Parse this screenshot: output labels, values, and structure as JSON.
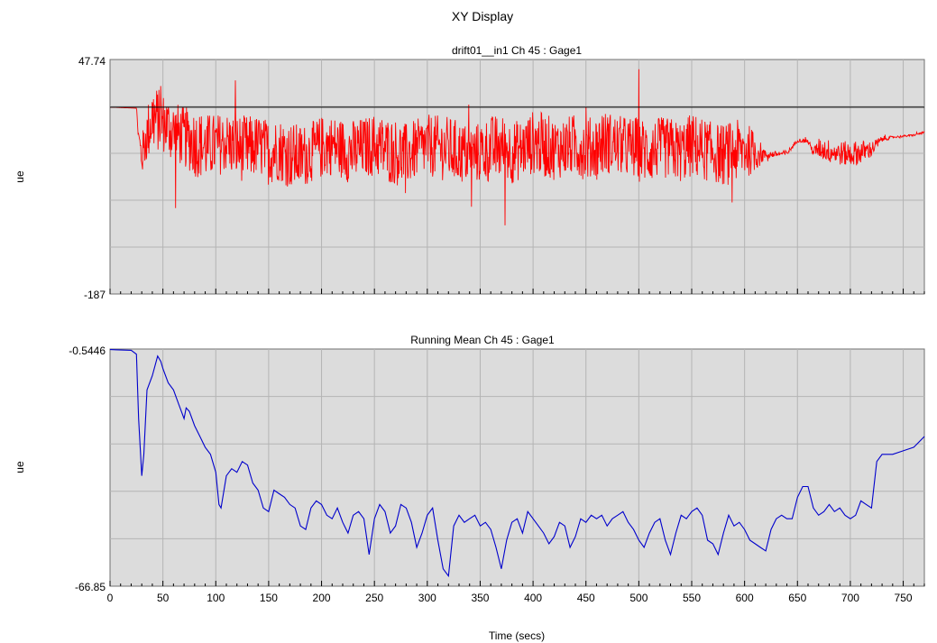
{
  "window_title": "XY Display",
  "xlabel": "Time (secs)",
  "colors": {
    "plot_bg": "#dcdcdc",
    "grid": "#b4b4b4",
    "series_top": "#ff0000",
    "series_bottom": "#0000cc",
    "hline": "#000000"
  },
  "chart_data": [
    {
      "type": "line",
      "title": "drift01__in1  Ch 45 : Gage1",
      "ylabel": "ue",
      "xlim": [
        0,
        770
      ],
      "ylim": [
        -187,
        47.74
      ],
      "y_tick_labels": [
        "47.74",
        "-187"
      ],
      "grid": true,
      "reference_line_y": 0,
      "series": [
        {
          "x": [
            0,
            25,
            27,
            30,
            33,
            40,
            50,
            60,
            70,
            80,
            90,
            100,
            110,
            120,
            130,
            140,
            150,
            160,
            170,
            180,
            190,
            200,
            210,
            220,
            230,
            240,
            250,
            260,
            270,
            280,
            290,
            300,
            310,
            320,
            330,
            340,
            350,
            360,
            370,
            380,
            390,
            400,
            410,
            420,
            430,
            440,
            450,
            460,
            470,
            480,
            490,
            500,
            510,
            520,
            530,
            540,
            550,
            560,
            570,
            580,
            590,
            600,
            610,
            620,
            630,
            640,
            645,
            650,
            660,
            665,
            670,
            680,
            690,
            700,
            710,
            720,
            730,
            740,
            750,
            760,
            770
          ],
          "y": [
            0,
            -1,
            -30,
            -50,
            -35,
            -10,
            -15,
            -25,
            -30,
            -35,
            -40,
            -38,
            -35,
            -40,
            -42,
            -38,
            -45,
            -42,
            -48,
            -50,
            -45,
            -40,
            -38,
            -42,
            -45,
            -40,
            -38,
            -42,
            -45,
            -48,
            -42,
            -38,
            -40,
            -42,
            -45,
            -48,
            -45,
            -42,
            -40,
            -45,
            -42,
            -35,
            -38,
            -42,
            -40,
            -38,
            -42,
            -40,
            -35,
            -38,
            -40,
            -42,
            -45,
            -40,
            -42,
            -45,
            -38,
            -42,
            -45,
            -48,
            -45,
            -42,
            -45,
            -48,
            -47,
            -46,
            -40,
            -33,
            -34,
            -45,
            -41,
            -44,
            -46,
            -47,
            -45,
            -42,
            -32,
            -30,
            -29,
            -28,
            -25
          ],
          "noise": [
            0,
            0,
            10,
            20,
            25,
            35,
            30,
            32,
            30,
            35,
            34,
            32,
            30,
            33,
            34,
            30,
            33,
            32,
            34,
            33,
            30,
            32,
            30,
            31,
            33,
            30,
            32,
            33,
            34,
            32,
            30,
            31,
            32,
            33,
            32,
            30,
            31,
            34,
            33,
            32,
            30,
            32,
            33,
            31,
            30,
            32,
            31,
            33,
            32,
            30,
            31,
            33,
            32,
            30,
            32,
            31,
            33,
            32,
            30,
            31,
            32,
            30,
            20,
            4,
            3,
            3,
            2,
            2,
            2,
            4,
            10,
            12,
            12,
            13,
            12,
            8,
            3,
            1,
            1,
            1,
            1
          ]
        }
      ]
    },
    {
      "type": "line",
      "title": "Running Mean  Ch 45 : Gage1",
      "ylabel": "ue",
      "xlim": [
        0,
        770
      ],
      "ylim": [
        -66.85,
        -0.5446
      ],
      "y_tick_labels": [
        "-0.5446",
        "-66.85"
      ],
      "x_tick_labels": [
        0,
        50,
        100,
        150,
        200,
        250,
        300,
        350,
        400,
        450,
        500,
        550,
        600,
        650,
        700,
        750
      ],
      "grid": true,
      "series": [
        {
          "x": [
            0,
            20,
            25,
            27,
            30,
            32,
            35,
            40,
            45,
            48,
            50,
            55,
            60,
            65,
            70,
            72,
            75,
            80,
            85,
            90,
            95,
            100,
            103,
            105,
            110,
            115,
            120,
            125,
            130,
            135,
            140,
            145,
            150,
            155,
            160,
            165,
            170,
            175,
            180,
            185,
            190,
            195,
            200,
            205,
            210,
            215,
            220,
            225,
            230,
            235,
            240,
            245,
            250,
            255,
            260,
            265,
            270,
            275,
            280,
            285,
            290,
            295,
            300,
            305,
            310,
            315,
            320,
            325,
            330,
            335,
            340,
            345,
            350,
            355,
            360,
            365,
            370,
            375,
            380,
            385,
            390,
            395,
            400,
            405,
            410,
            415,
            420,
            425,
            430,
            435,
            440,
            445,
            450,
            455,
            460,
            465,
            470,
            475,
            480,
            485,
            490,
            495,
            500,
            505,
            510,
            515,
            520,
            525,
            530,
            535,
            540,
            545,
            550,
            555,
            560,
            565,
            570,
            575,
            580,
            585,
            590,
            595,
            600,
            605,
            610,
            615,
            620,
            625,
            630,
            635,
            640,
            645,
            650,
            655,
            660,
            665,
            670,
            675,
            680,
            685,
            690,
            695,
            700,
            705,
            710,
            715,
            720,
            725,
            730,
            735,
            740,
            750,
            760,
            770
          ],
          "y": [
            -0.7,
            -0.9,
            -2,
            -20,
            -36,
            -30,
            -12,
            -8,
            -2.5,
            -4,
            -6,
            -10,
            -12,
            -16,
            -20,
            -17,
            -18,
            -22,
            -25,
            -28,
            -30,
            -35,
            -44,
            -45,
            -36,
            -34,
            -35,
            -32,
            -33,
            -38,
            -40,
            -45,
            -46,
            -40,
            -41,
            -42,
            -44,
            -45,
            -50,
            -51,
            -45,
            -43,
            -44,
            -47,
            -48,
            -45,
            -49,
            -52,
            -47,
            -46,
            -48,
            -58,
            -48,
            -44,
            -46,
            -52,
            -50,
            -44,
            -45,
            -49,
            -56,
            -52,
            -47,
            -45,
            -54,
            -62,
            -64,
            -50,
            -47,
            -49,
            -48,
            -47,
            -50,
            -49,
            -51,
            -56,
            -62,
            -54,
            -49,
            -48,
            -52,
            -46,
            -48,
            -50,
            -52,
            -55,
            -53,
            -49,
            -50,
            -56,
            -53,
            -48,
            -49,
            -47,
            -48,
            -47,
            -50,
            -48,
            -47,
            -46,
            -49,
            -51,
            -54,
            -56,
            -52,
            -49,
            -48,
            -54,
            -58,
            -52,
            -47,
            -48,
            -46,
            -45,
            -47,
            -54,
            -55,
            -58,
            -52,
            -47,
            -50,
            -49,
            -51,
            -54,
            -55,
            -56,
            -57,
            -51,
            -48,
            -47,
            -48,
            -48,
            -42,
            -39,
            -39,
            -45,
            -47,
            -46,
            -44,
            -46,
            -45,
            -47,
            -48,
            -47,
            -43,
            -44,
            -45,
            -32,
            -30,
            -30,
            -30,
            -29,
            -28,
            -25
          ]
        }
      ]
    }
  ]
}
